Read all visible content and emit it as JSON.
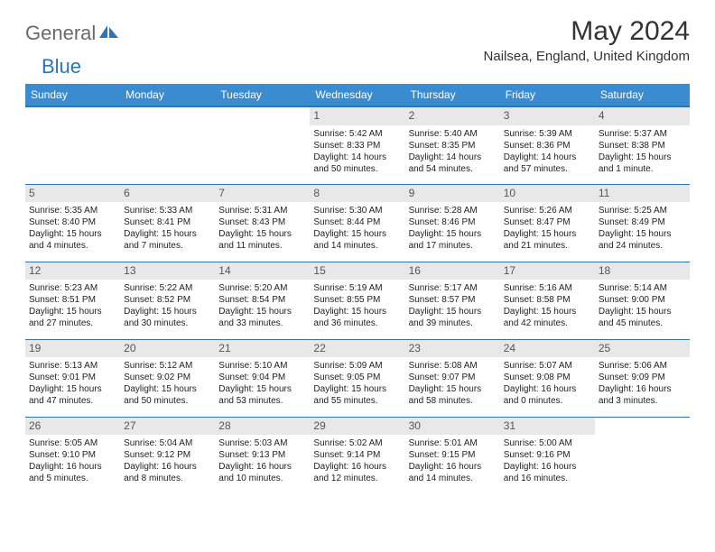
{
  "logo": {
    "general": "General",
    "blue": "Blue"
  },
  "title": "May 2024",
  "location": "Nailsea, England, United Kingdom",
  "colors": {
    "header_bg": "#3b8bd0",
    "header_text": "#ffffff",
    "border": "#2e74b5",
    "daynum_bg": "#e8e8e8",
    "logo_gray": "#6a6a6a",
    "logo_blue": "#2e74b5",
    "text": "#222222"
  },
  "day_headers": [
    "Sunday",
    "Monday",
    "Tuesday",
    "Wednesday",
    "Thursday",
    "Friday",
    "Saturday"
  ],
  "weeks": [
    [
      {
        "n": "",
        "empty": true
      },
      {
        "n": "",
        "empty": true
      },
      {
        "n": "",
        "empty": true
      },
      {
        "n": "1",
        "sr": "Sunrise: 5:42 AM",
        "ss": "Sunset: 8:33 PM",
        "dl": "Daylight: 14 hours and 50 minutes."
      },
      {
        "n": "2",
        "sr": "Sunrise: 5:40 AM",
        "ss": "Sunset: 8:35 PM",
        "dl": "Daylight: 14 hours and 54 minutes."
      },
      {
        "n": "3",
        "sr": "Sunrise: 5:39 AM",
        "ss": "Sunset: 8:36 PM",
        "dl": "Daylight: 14 hours and 57 minutes."
      },
      {
        "n": "4",
        "sr": "Sunrise: 5:37 AM",
        "ss": "Sunset: 8:38 PM",
        "dl": "Daylight: 15 hours and 1 minute."
      }
    ],
    [
      {
        "n": "5",
        "sr": "Sunrise: 5:35 AM",
        "ss": "Sunset: 8:40 PM",
        "dl": "Daylight: 15 hours and 4 minutes."
      },
      {
        "n": "6",
        "sr": "Sunrise: 5:33 AM",
        "ss": "Sunset: 8:41 PM",
        "dl": "Daylight: 15 hours and 7 minutes."
      },
      {
        "n": "7",
        "sr": "Sunrise: 5:31 AM",
        "ss": "Sunset: 8:43 PM",
        "dl": "Daylight: 15 hours and 11 minutes."
      },
      {
        "n": "8",
        "sr": "Sunrise: 5:30 AM",
        "ss": "Sunset: 8:44 PM",
        "dl": "Daylight: 15 hours and 14 minutes."
      },
      {
        "n": "9",
        "sr": "Sunrise: 5:28 AM",
        "ss": "Sunset: 8:46 PM",
        "dl": "Daylight: 15 hours and 17 minutes."
      },
      {
        "n": "10",
        "sr": "Sunrise: 5:26 AM",
        "ss": "Sunset: 8:47 PM",
        "dl": "Daylight: 15 hours and 21 minutes."
      },
      {
        "n": "11",
        "sr": "Sunrise: 5:25 AM",
        "ss": "Sunset: 8:49 PM",
        "dl": "Daylight: 15 hours and 24 minutes."
      }
    ],
    [
      {
        "n": "12",
        "sr": "Sunrise: 5:23 AM",
        "ss": "Sunset: 8:51 PM",
        "dl": "Daylight: 15 hours and 27 minutes."
      },
      {
        "n": "13",
        "sr": "Sunrise: 5:22 AM",
        "ss": "Sunset: 8:52 PM",
        "dl": "Daylight: 15 hours and 30 minutes."
      },
      {
        "n": "14",
        "sr": "Sunrise: 5:20 AM",
        "ss": "Sunset: 8:54 PM",
        "dl": "Daylight: 15 hours and 33 minutes."
      },
      {
        "n": "15",
        "sr": "Sunrise: 5:19 AM",
        "ss": "Sunset: 8:55 PM",
        "dl": "Daylight: 15 hours and 36 minutes."
      },
      {
        "n": "16",
        "sr": "Sunrise: 5:17 AM",
        "ss": "Sunset: 8:57 PM",
        "dl": "Daylight: 15 hours and 39 minutes."
      },
      {
        "n": "17",
        "sr": "Sunrise: 5:16 AM",
        "ss": "Sunset: 8:58 PM",
        "dl": "Daylight: 15 hours and 42 minutes."
      },
      {
        "n": "18",
        "sr": "Sunrise: 5:14 AM",
        "ss": "Sunset: 9:00 PM",
        "dl": "Daylight: 15 hours and 45 minutes."
      }
    ],
    [
      {
        "n": "19",
        "sr": "Sunrise: 5:13 AM",
        "ss": "Sunset: 9:01 PM",
        "dl": "Daylight: 15 hours and 47 minutes."
      },
      {
        "n": "20",
        "sr": "Sunrise: 5:12 AM",
        "ss": "Sunset: 9:02 PM",
        "dl": "Daylight: 15 hours and 50 minutes."
      },
      {
        "n": "21",
        "sr": "Sunrise: 5:10 AM",
        "ss": "Sunset: 9:04 PM",
        "dl": "Daylight: 15 hours and 53 minutes."
      },
      {
        "n": "22",
        "sr": "Sunrise: 5:09 AM",
        "ss": "Sunset: 9:05 PM",
        "dl": "Daylight: 15 hours and 55 minutes."
      },
      {
        "n": "23",
        "sr": "Sunrise: 5:08 AM",
        "ss": "Sunset: 9:07 PM",
        "dl": "Daylight: 15 hours and 58 minutes."
      },
      {
        "n": "24",
        "sr": "Sunrise: 5:07 AM",
        "ss": "Sunset: 9:08 PM",
        "dl": "Daylight: 16 hours and 0 minutes."
      },
      {
        "n": "25",
        "sr": "Sunrise: 5:06 AM",
        "ss": "Sunset: 9:09 PM",
        "dl": "Daylight: 16 hours and 3 minutes."
      }
    ],
    [
      {
        "n": "26",
        "sr": "Sunrise: 5:05 AM",
        "ss": "Sunset: 9:10 PM",
        "dl": "Daylight: 16 hours and 5 minutes."
      },
      {
        "n": "27",
        "sr": "Sunrise: 5:04 AM",
        "ss": "Sunset: 9:12 PM",
        "dl": "Daylight: 16 hours and 8 minutes."
      },
      {
        "n": "28",
        "sr": "Sunrise: 5:03 AM",
        "ss": "Sunset: 9:13 PM",
        "dl": "Daylight: 16 hours and 10 minutes."
      },
      {
        "n": "29",
        "sr": "Sunrise: 5:02 AM",
        "ss": "Sunset: 9:14 PM",
        "dl": "Daylight: 16 hours and 12 minutes."
      },
      {
        "n": "30",
        "sr": "Sunrise: 5:01 AM",
        "ss": "Sunset: 9:15 PM",
        "dl": "Daylight: 16 hours and 14 minutes."
      },
      {
        "n": "31",
        "sr": "Sunrise: 5:00 AM",
        "ss": "Sunset: 9:16 PM",
        "dl": "Daylight: 16 hours and 16 minutes."
      },
      {
        "n": "",
        "empty": true
      }
    ]
  ]
}
